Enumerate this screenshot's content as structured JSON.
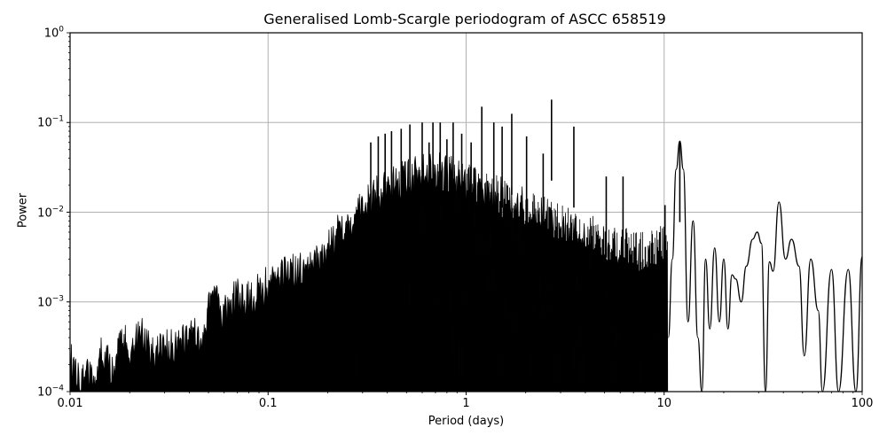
{
  "chart_data": {
    "type": "line",
    "title": "Generalised Lomb-Scargle periodogram of ASCC 658519",
    "xlabel": "Period (days)",
    "ylabel": "Power",
    "xscale": "log",
    "yscale": "log",
    "xlim": [
      0.01,
      100
    ],
    "ylim": [
      0.0001,
      1
    ],
    "grid": true,
    "legend": null,
    "line_color": "#000000",
    "grid_color": "#b0b0b0",
    "x_ticks": [
      {
        "value": 0.01,
        "label": "0.01"
      },
      {
        "value": 0.1,
        "label": "0.1"
      },
      {
        "value": 1,
        "label": "1"
      },
      {
        "value": 10,
        "label": "10"
      },
      {
        "value": 100,
        "label": "100"
      }
    ],
    "y_ticks": [
      {
        "value": 1,
        "base": "10",
        "exp": "0"
      },
      {
        "value": 0.1,
        "base": "10",
        "exp": "−1"
      },
      {
        "value": 0.01,
        "base": "10",
        "exp": "−2"
      },
      {
        "value": 0.001,
        "base": "10",
        "exp": "−3"
      },
      {
        "value": 0.0001,
        "base": "10",
        "exp": "−4"
      }
    ],
    "envelope_description": "Dense periodogram; upper envelope rises from ~3e-4 at 0.01 d to ~0.1 near 0.5–3 d, then resolves into individual smooth peaks at long periods.",
    "upper_envelope": [
      {
        "period": 0.01,
        "power": 0.00035
      },
      {
        "period": 0.0115,
        "power": 0.00026
      },
      {
        "period": 0.0135,
        "power": 0.00022
      },
      {
        "period": 0.0145,
        "power": 0.00045
      },
      {
        "period": 0.016,
        "power": 0.0003
      },
      {
        "period": 0.0185,
        "power": 0.0006
      },
      {
        "period": 0.02,
        "power": 0.0005
      },
      {
        "period": 0.023,
        "power": 0.0007
      },
      {
        "period": 0.026,
        "power": 0.0004
      },
      {
        "period": 0.03,
        "power": 0.0005
      },
      {
        "period": 0.038,
        "power": 0.0006
      },
      {
        "period": 0.045,
        "power": 0.0007
      },
      {
        "period": 0.05,
        "power": 0.0013
      },
      {
        "period": 0.055,
        "power": 0.0016
      },
      {
        "period": 0.062,
        "power": 0.0012
      },
      {
        "period": 0.07,
        "power": 0.002
      },
      {
        "period": 0.08,
        "power": 0.0017
      },
      {
        "period": 0.09,
        "power": 0.0023
      },
      {
        "period": 0.1,
        "power": 0.0025
      },
      {
        "period": 0.11,
        "power": 0.0028
      },
      {
        "period": 0.125,
        "power": 0.004
      },
      {
        "period": 0.14,
        "power": 0.0033
      },
      {
        "period": 0.16,
        "power": 0.0042
      },
      {
        "period": 0.18,
        "power": 0.005
      },
      {
        "period": 0.2,
        "power": 0.006
      },
      {
        "period": 0.22,
        "power": 0.009
      },
      {
        "period": 0.25,
        "power": 0.011
      },
      {
        "period": 0.28,
        "power": 0.015
      },
      {
        "period": 0.31,
        "power": 0.02
      },
      {
        "period": 0.35,
        "power": 0.025
      },
      {
        "period": 0.4,
        "power": 0.03
      },
      {
        "period": 0.45,
        "power": 0.035
      },
      {
        "period": 0.5,
        "power": 0.04
      },
      {
        "period": 0.6,
        "power": 0.045
      },
      {
        "period": 0.7,
        "power": 0.05
      },
      {
        "period": 0.8,
        "power": 0.045
      },
      {
        "period": 0.9,
        "power": 0.04
      },
      {
        "period": 1.0,
        "power": 0.035
      },
      {
        "period": 1.2,
        "power": 0.03
      },
      {
        "period": 1.5,
        "power": 0.025
      },
      {
        "period": 2.0,
        "power": 0.02
      },
      {
        "period": 2.5,
        "power": 0.015
      },
      {
        "period": 3.0,
        "power": 0.012
      },
      {
        "period": 4.0,
        "power": 0.01
      },
      {
        "period": 5.0,
        "power": 0.008
      },
      {
        "period": 6.0,
        "power": 0.007
      },
      {
        "period": 8.0,
        "power": 0.006
      },
      {
        "period": 10.0,
        "power": 0.008
      }
    ],
    "peaks": [
      {
        "period": 0.33,
        "power": 0.06
      },
      {
        "period": 0.36,
        "power": 0.07
      },
      {
        "period": 0.39,
        "power": 0.075
      },
      {
        "period": 0.42,
        "power": 0.08
      },
      {
        "period": 0.47,
        "power": 0.085
      },
      {
        "period": 0.52,
        "power": 0.095
      },
      {
        "period": 0.6,
        "power": 0.1
      },
      {
        "period": 0.65,
        "power": 0.06
      },
      {
        "period": 0.68,
        "power": 0.1
      },
      {
        "period": 0.74,
        "power": 0.1
      },
      {
        "period": 0.8,
        "power": 0.065
      },
      {
        "period": 0.86,
        "power": 0.1
      },
      {
        "period": 0.95,
        "power": 0.075
      },
      {
        "period": 1.06,
        "power": 0.06
      },
      {
        "period": 1.2,
        "power": 0.15
      },
      {
        "period": 1.38,
        "power": 0.1
      },
      {
        "period": 1.52,
        "power": 0.09
      },
      {
        "period": 1.7,
        "power": 0.125
      },
      {
        "period": 2.02,
        "power": 0.07
      },
      {
        "period": 2.45,
        "power": 0.045
      },
      {
        "period": 2.7,
        "power": 0.18
      },
      {
        "period": 3.5,
        "power": 0.09
      },
      {
        "period": 5.1,
        "power": 0.025
      },
      {
        "period": 6.2,
        "power": 0.025
      },
      {
        "period": 10.1,
        "power": 0.012
      },
      {
        "period": 12.0,
        "power": 0.062
      }
    ],
    "long_period_curve": [
      {
        "period": 10.5,
        "power": 0.0004
      },
      {
        "period": 11.0,
        "power": 0.003
      },
      {
        "period": 11.5,
        "power": 0.03
      },
      {
        "period": 12.0,
        "power": 0.062
      },
      {
        "period": 12.5,
        "power": 0.03
      },
      {
        "period": 13.2,
        "power": 0.0006
      },
      {
        "period": 14.0,
        "power": 0.008
      },
      {
        "period": 14.8,
        "power": 0.0004
      },
      {
        "period": 15.5,
        "power": 0.0001
      },
      {
        "period": 16.2,
        "power": 0.003
      },
      {
        "period": 17.0,
        "power": 0.0005
      },
      {
        "period": 18.0,
        "power": 0.004
      },
      {
        "period": 19.0,
        "power": 0.0006
      },
      {
        "period": 20.0,
        "power": 0.003
      },
      {
        "period": 21.0,
        "power": 0.0005
      },
      {
        "period": 22.0,
        "power": 0.002
      },
      {
        "period": 23.0,
        "power": 0.0018
      },
      {
        "period": 24.5,
        "power": 0.001
      },
      {
        "period": 26.0,
        "power": 0.0025
      },
      {
        "period": 28.0,
        "power": 0.005
      },
      {
        "period": 29.5,
        "power": 0.006
      },
      {
        "period": 31.0,
        "power": 0.0045
      },
      {
        "period": 32.5,
        "power": 0.0001
      },
      {
        "period": 34.0,
        "power": 0.0028
      },
      {
        "period": 35.5,
        "power": 0.0022
      },
      {
        "period": 38.0,
        "power": 0.013
      },
      {
        "period": 41.0,
        "power": 0.003
      },
      {
        "period": 44.0,
        "power": 0.005
      },
      {
        "period": 48.0,
        "power": 0.0025
      },
      {
        "period": 51.0,
        "power": 0.00025
      },
      {
        "period": 55.0,
        "power": 0.003
      },
      {
        "period": 60.0,
        "power": 0.0008
      },
      {
        "period": 63.0,
        "power": 0.0001
      },
      {
        "period": 70.0,
        "power": 0.0023
      },
      {
        "period": 76.0,
        "power": 0.0001
      },
      {
        "period": 85.0,
        "power": 0.0023
      },
      {
        "period": 93.0,
        "power": 0.0001
      },
      {
        "period": 100.0,
        "power": 0.0032
      }
    ]
  }
}
